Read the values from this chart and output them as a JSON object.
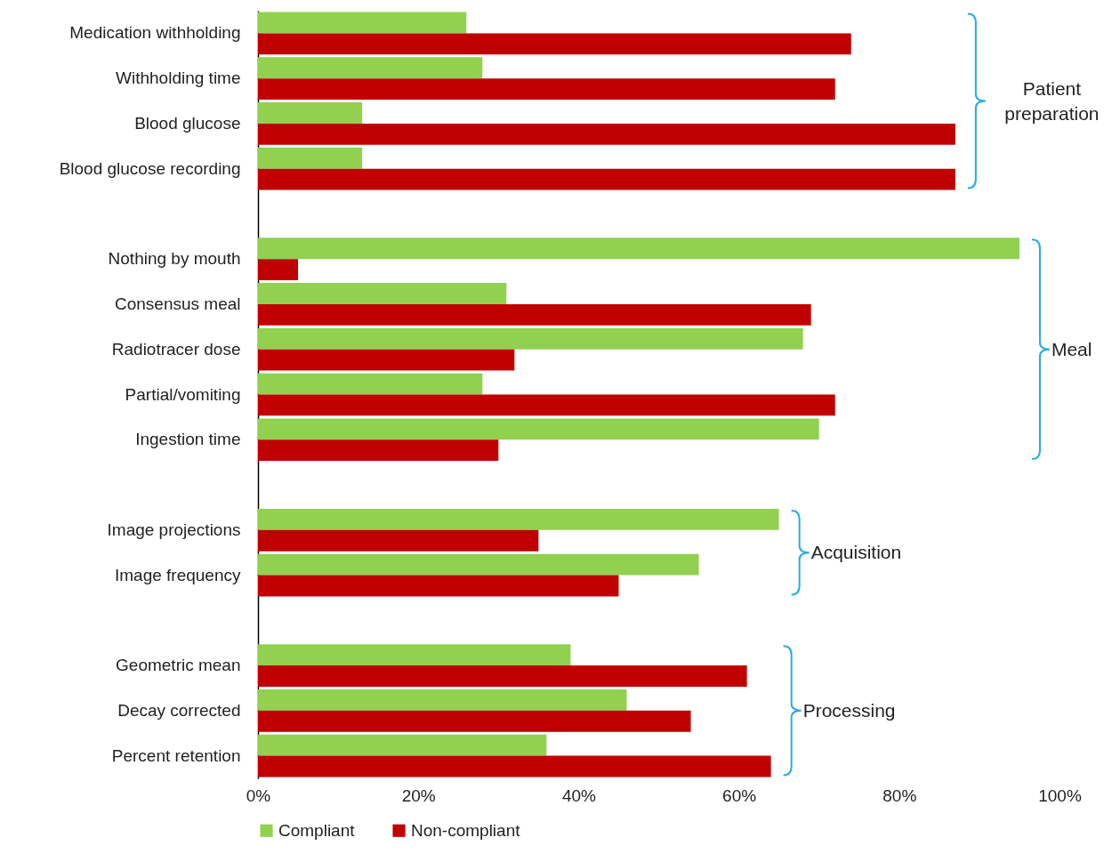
{
  "chart_data": {
    "type": "bar",
    "orientation": "horizontal",
    "categories": [
      "Medication withholding",
      "Withholding time",
      "Blood glucose",
      "Blood glucose recording",
      null,
      "Nothing by mouth",
      "Consensus meal",
      "Radiotracer dose",
      "Partial/vomiting",
      "Ingestion time",
      null,
      "Image projections",
      "Image frequency",
      null,
      "Geometric mean",
      "Decay corrected",
      "Percent retention"
    ],
    "series": [
      {
        "name": "Compliant",
        "color": "#92d050",
        "values": [
          26,
          28,
          13,
          13,
          null,
          95,
          31,
          68,
          28,
          70,
          null,
          65,
          55,
          null,
          39,
          46,
          36
        ]
      },
      {
        "name": "Non-compliant",
        "color": "#c00000",
        "values": [
          74,
          72,
          87,
          87,
          null,
          5,
          69,
          32,
          72,
          30,
          null,
          35,
          45,
          null,
          61,
          54,
          64
        ]
      }
    ],
    "xlim": [
      0,
      100
    ],
    "xticks": [
      {
        "value": 0,
        "label": "0%"
      },
      {
        "value": 20,
        "label": "20%"
      },
      {
        "value": 40,
        "label": "40%"
      },
      {
        "value": 60,
        "label": "60%"
      },
      {
        "value": 80,
        "label": "80%"
      },
      {
        "value": 100,
        "label": "100%"
      }
    ],
    "legend": "bottom",
    "grid": false,
    "annotations": [
      "Patient preparation",
      "Meal",
      "Acquisition",
      "Processing"
    ]
  }
}
